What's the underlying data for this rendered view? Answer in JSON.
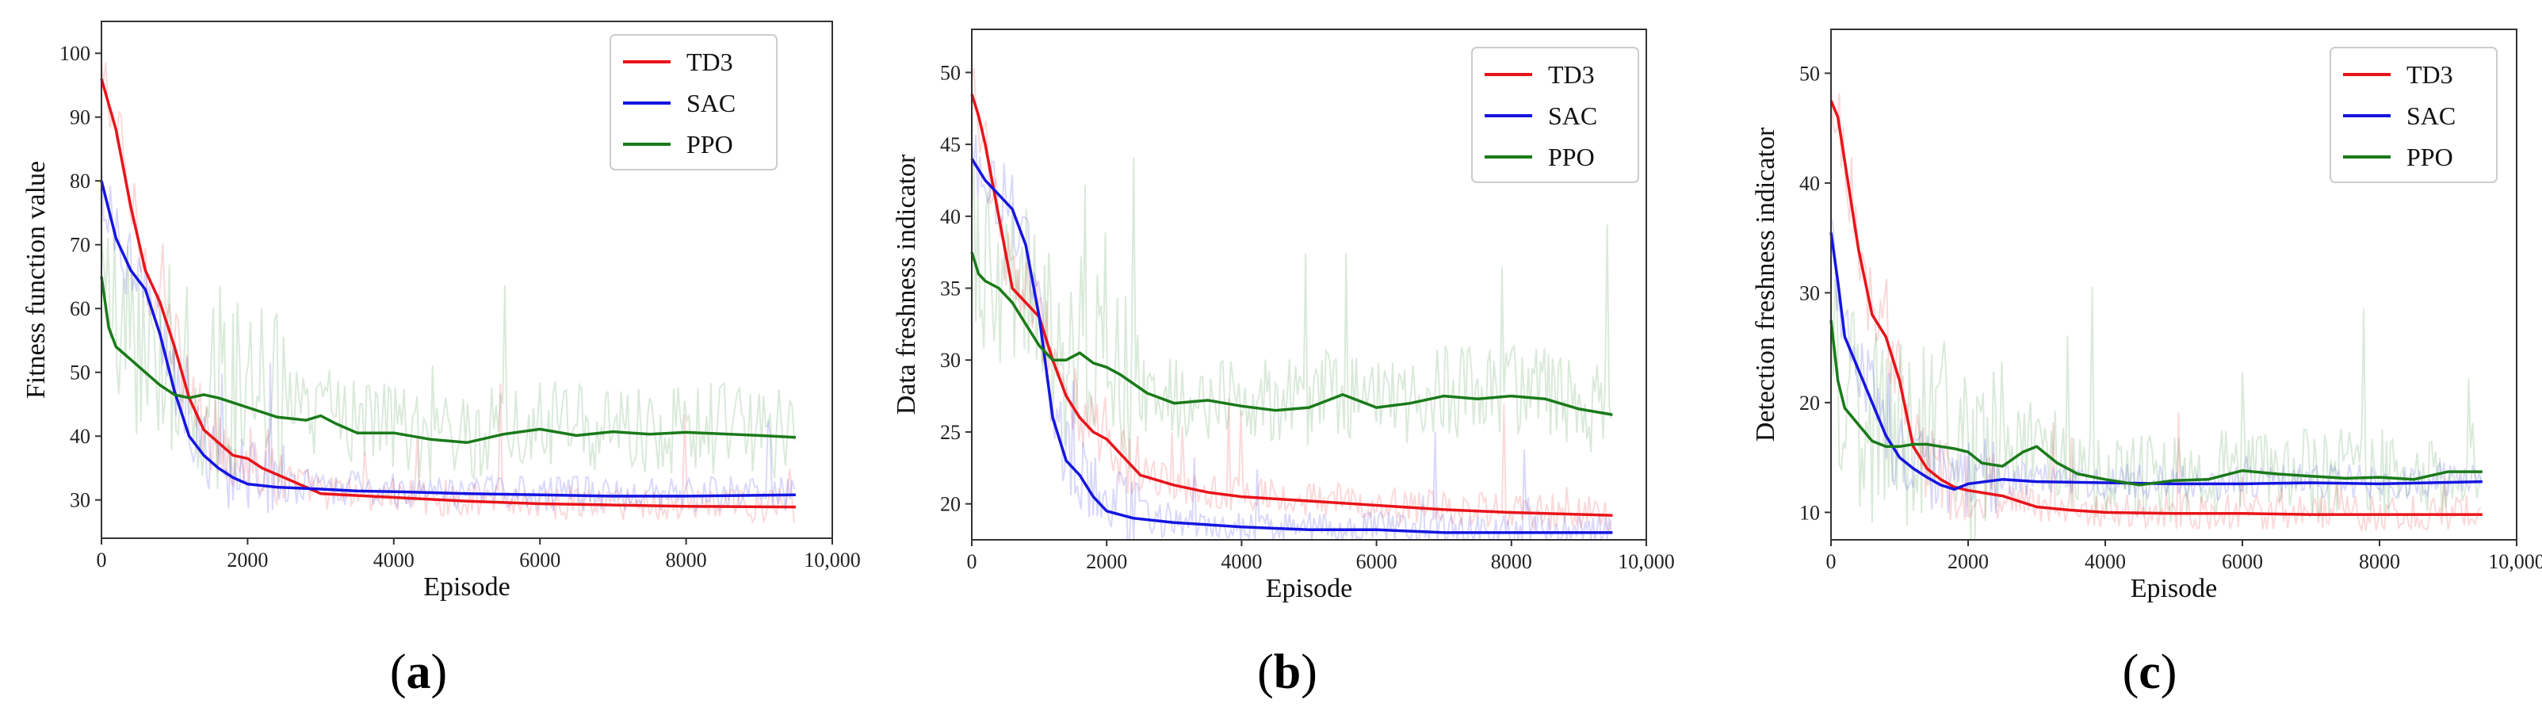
{
  "figure": {
    "captions": [
      "(a)",
      "(b)",
      "(c)"
    ],
    "caption_letters": [
      "a",
      "b",
      "c"
    ]
  },
  "colors": {
    "TD3": "#e8141a",
    "SAC": "#1515e0",
    "PPO": "#1a7a1a"
  },
  "chart_data": [
    {
      "type": "line",
      "panel": "a",
      "xlabel": "Episode",
      "ylabel": "Fitness function value",
      "xlim": [
        0,
        10000
      ],
      "ylim": [
        24,
        105
      ],
      "xticks": [
        0,
        2000,
        4000,
        6000,
        8000,
        10000
      ],
      "xtick_labels": [
        "0",
        "2000",
        "4000",
        "6000",
        "8000",
        "10,000"
      ],
      "yticks": [
        30,
        40,
        50,
        60,
        70,
        80,
        90,
        100
      ],
      "legend": {
        "position": "top-right",
        "entries": [
          "TD3",
          "SAC",
          "PPO"
        ]
      },
      "series": [
        {
          "name": "TD3",
          "x": [
            0,
            200,
            400,
            600,
            800,
            1000,
            1200,
            1400,
            1600,
            1800,
            2000,
            2200,
            2500,
            2800,
            3000,
            3500,
            4000,
            4500,
            5000,
            6000,
            7000,
            8000,
            9500
          ],
          "y": [
            96,
            88,
            76,
            66,
            61,
            54,
            46,
            41,
            39,
            37,
            36.5,
            35,
            33.5,
            32,
            31,
            30.7,
            30.4,
            30.1,
            29.8,
            29.4,
            29.2,
            29,
            28.9
          ]
        },
        {
          "name": "SAC",
          "x": [
            0,
            200,
            400,
            600,
            800,
            1000,
            1200,
            1400,
            1600,
            1800,
            2000,
            2400,
            3000,
            3500,
            4000,
            5000,
            6000,
            7000,
            8000,
            9500
          ],
          "y": [
            80,
            71,
            66,
            63,
            56,
            47,
            40,
            37,
            35,
            33.5,
            32.5,
            32,
            31.7,
            31.4,
            31.3,
            31,
            30.8,
            30.6,
            30.6,
            30.8
          ]
        },
        {
          "name": "PPO",
          "x": [
            0,
            100,
            200,
            400,
            600,
            800,
            1000,
            1200,
            1400,
            1600,
            2000,
            2400,
            2800,
            3000,
            3200,
            3500,
            4000,
            4500,
            5000,
            5500,
            6000,
            6500,
            7000,
            7500,
            8000,
            9000,
            9500
          ],
          "y": [
            65,
            57,
            54,
            52,
            50,
            48,
            46.5,
            46,
            46.5,
            46,
            44.5,
            43,
            42.5,
            43.2,
            42,
            40.5,
            40.5,
            39.5,
            39,
            40.3,
            41.1,
            40.1,
            40.7,
            40.3,
            40.6,
            40.1,
            39.8
          ]
        }
      ]
    },
    {
      "type": "line",
      "panel": "b",
      "xlabel": "Episode",
      "ylabel": "Data freshness indicator",
      "xlim": [
        0,
        10000
      ],
      "ylim": [
        17.5,
        53
      ],
      "xticks": [
        0,
        2000,
        4000,
        6000,
        8000,
        10000
      ],
      "xtick_labels": [
        "0",
        "2000",
        "4000",
        "6000",
        "8000",
        "10,000"
      ],
      "yticks": [
        20,
        25,
        30,
        35,
        40,
        45,
        50
      ],
      "legend": {
        "position": "top-right",
        "entries": [
          "TD3",
          "SAC",
          "PPO"
        ]
      },
      "series": [
        {
          "name": "TD3",
          "x": [
            0,
            100,
            200,
            400,
            600,
            800,
            1000,
            1200,
            1400,
            1600,
            1800,
            2000,
            2200,
            2500,
            3000,
            3500,
            4000,
            5000,
            6000,
            7000,
            8000,
            9500
          ],
          "y": [
            48.5,
            47,
            45,
            40,
            35,
            34,
            33,
            30,
            27.5,
            26,
            25,
            24.5,
            23.5,
            22,
            21.3,
            20.8,
            20.5,
            20.2,
            19.9,
            19.6,
            19.4,
            19.2
          ]
        },
        {
          "name": "SAC",
          "x": [
            0,
            200,
            400,
            600,
            800,
            1000,
            1200,
            1400,
            1600,
            1800,
            2000,
            2400,
            3000,
            4000,
            5000,
            6000,
            7000,
            8000,
            9500
          ],
          "y": [
            44,
            42.5,
            41.5,
            40.5,
            38,
            33,
            26,
            23,
            22,
            20.5,
            19.5,
            19,
            18.7,
            18.4,
            18.2,
            18.2,
            18,
            18,
            18
          ]
        },
        {
          "name": "PPO",
          "x": [
            0,
            100,
            200,
            400,
            600,
            800,
            1000,
            1200,
            1400,
            1600,
            1800,
            2000,
            2200,
            2600,
            3000,
            3500,
            4000,
            4500,
            5000,
            5500,
            6000,
            6500,
            7000,
            7500,
            8000,
            8500,
            9000,
            9500
          ],
          "y": [
            37.5,
            36,
            35.5,
            35,
            34,
            32.5,
            31,
            30,
            30,
            30.5,
            29.8,
            29.5,
            29,
            27.7,
            27,
            27.2,
            26.8,
            26.5,
            26.7,
            27.6,
            26.7,
            27,
            27.5,
            27.3,
            27.5,
            27.3,
            26.6,
            26.2
          ]
        }
      ]
    },
    {
      "type": "line",
      "panel": "c",
      "xlabel": "Episode",
      "ylabel": "Detection freshness indicator",
      "xlim": [
        0,
        10000
      ],
      "ylim": [
        7.5,
        54
      ],
      "xticks": [
        0,
        2000,
        4000,
        6000,
        8000,
        10000
      ],
      "xtick_labels": [
        "0",
        "2000",
        "4000",
        "6000",
        "8000",
        "10,000"
      ],
      "yticks": [
        10,
        20,
        30,
        40,
        50
      ],
      "legend": {
        "position": "top-right",
        "entries": [
          "TD3",
          "SAC",
          "PPO"
        ]
      },
      "series": [
        {
          "name": "TD3",
          "x": [
            0,
            100,
            200,
            400,
            600,
            800,
            1000,
            1200,
            1400,
            1600,
            1800,
            2000,
            2500,
            3000,
            3500,
            4000,
            5000,
            6000,
            7000,
            8000,
            9500
          ],
          "y": [
            47.5,
            46,
            42,
            34,
            28,
            26,
            22,
            16,
            14,
            13,
            12.3,
            12,
            11.5,
            10.5,
            10.2,
            10,
            9.9,
            9.9,
            9.8,
            9.8,
            9.8
          ]
        },
        {
          "name": "SAC",
          "x": [
            0,
            100,
            200,
            400,
            600,
            800,
            1000,
            1200,
            1400,
            1600,
            1800,
            2000,
            2500,
            3000,
            4000,
            5000,
            6000,
            7000,
            8000,
            9500
          ],
          "y": [
            35.5,
            31,
            26,
            23,
            20,
            17,
            15,
            14,
            13.2,
            12.5,
            12.1,
            12.6,
            13,
            12.8,
            12.7,
            12.6,
            12.6,
            12.7,
            12.6,
            12.8
          ]
        },
        {
          "name": "PPO",
          "x": [
            0,
            100,
            200,
            400,
            600,
            800,
            1000,
            1200,
            1400,
            1600,
            1800,
            2000,
            2200,
            2500,
            2800,
            3000,
            3300,
            3600,
            4000,
            4500,
            5000,
            5500,
            6000,
            6500,
            7000,
            7500,
            8000,
            8500,
            9000,
            9500
          ],
          "y": [
            27.5,
            22,
            19.5,
            18,
            16.5,
            16,
            16,
            16.2,
            16.2,
            16,
            15.8,
            15.5,
            14.5,
            14.2,
            15.5,
            16,
            14.5,
            13.5,
            13,
            12.5,
            12.9,
            13,
            13.8,
            13.5,
            13.3,
            13.1,
            13.2,
            13,
            13.7,
            13.7
          ]
        }
      ]
    }
  ]
}
